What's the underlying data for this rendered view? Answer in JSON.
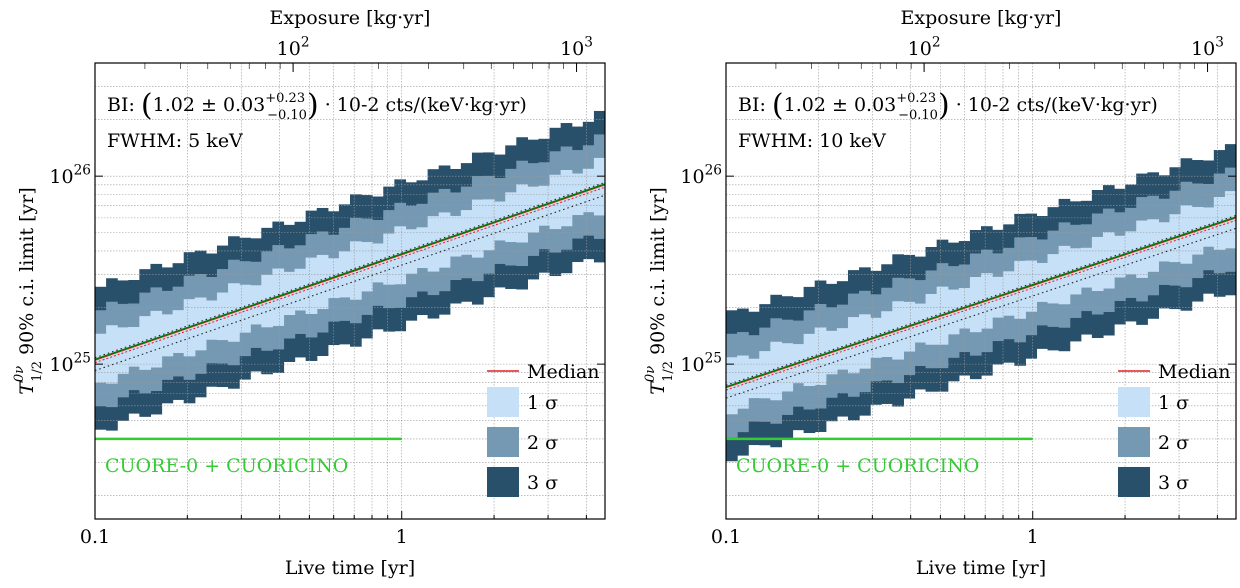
{
  "colors": {
    "sigma1": "#c6e0f7",
    "sigma2": "#7599b3",
    "sigma3": "#29506a",
    "median": "#e02020",
    "fit": "#007a00",
    "cuore": "#33cc33",
    "grid": "#999999"
  },
  "chart_data": [
    {
      "type": "area",
      "xlabel": "Live time [yr]",
      "ylabel": "T_{1/2}^{0ν} 90% c.i. limit [yr]",
      "top_axis_label": "Exposure [kg·yr]",
      "x_scale": "log",
      "y_scale": "log",
      "xlim": [
        0.1,
        4.6
      ],
      "ylim": [
        1.5e+24,
        4e+26
      ],
      "exposure_range": [
        20,
        1260
      ],
      "x_ticks": [
        "0.1",
        "1"
      ],
      "y_ticks": [
        "10^25",
        "10^26"
      ],
      "top_ticks": [
        "10^2",
        "10^3"
      ],
      "grid": true,
      "legend_placement": "bottom-right",
      "annotations": {
        "bi_prefix": "BI:",
        "bi_value": "1.02 ± 0.03",
        "bi_sup": "+0.23",
        "bi_sub": "−0.10",
        "bi_suffix": "· 10-2 cts/(keV·kg·yr)",
        "fwhm": "FWHM: 5 keV"
      },
      "legend": [
        "Median",
        "1 σ",
        "2 σ",
        "3 σ"
      ],
      "reference_line": {
        "label": "CUORE-0 + CUORICINO",
        "value": 4e+24,
        "x_range": [
          0.1,
          1.0
        ]
      },
      "series": {
        "median_at_x_0.1": 1.05e+25,
        "median_at_x_4.6": 9e+25,
        "sigma1_half_width_factor": 1.35,
        "sigma2_half_width_factor": 1.8,
        "sigma3_half_width_factor": 2.4
      }
    },
    {
      "type": "area",
      "xlabel": "Live time [yr]",
      "ylabel": "T_{1/2}^{0ν} 90% c.i. limit [yr]",
      "top_axis_label": "Exposure [kg·yr]",
      "x_scale": "log",
      "y_scale": "log",
      "xlim": [
        0.1,
        4.6
      ],
      "ylim": [
        1.5e+24,
        4e+26
      ],
      "exposure_range": [
        20,
        1260
      ],
      "x_ticks": [
        "0.1",
        "1"
      ],
      "y_ticks": [
        "10^25",
        "10^26"
      ],
      "top_ticks": [
        "10^2",
        "10^3"
      ],
      "grid": true,
      "legend_placement": "bottom-right",
      "annotations": {
        "bi_prefix": "BI:",
        "bi_value": "1.02 ± 0.03",
        "bi_sup": "+0.23",
        "bi_sub": "−0.10",
        "bi_suffix": "· 10-2 cts/(keV·kg·yr)",
        "fwhm": "FWHM: 10 keV"
      },
      "legend": [
        "Median",
        "1 σ",
        "2 σ",
        "3 σ"
      ],
      "reference_line": {
        "label": "CUORE-0 + CUORICINO",
        "value": 4e+24,
        "x_range": [
          0.1,
          1.0
        ]
      },
      "series": {
        "median_at_x_0.1": 7.5e+24,
        "median_at_x_4.6": 6e+25,
        "sigma1_half_width_factor": 1.35,
        "sigma2_half_width_factor": 1.8,
        "sigma3_half_width_factor": 2.4
      }
    }
  ]
}
